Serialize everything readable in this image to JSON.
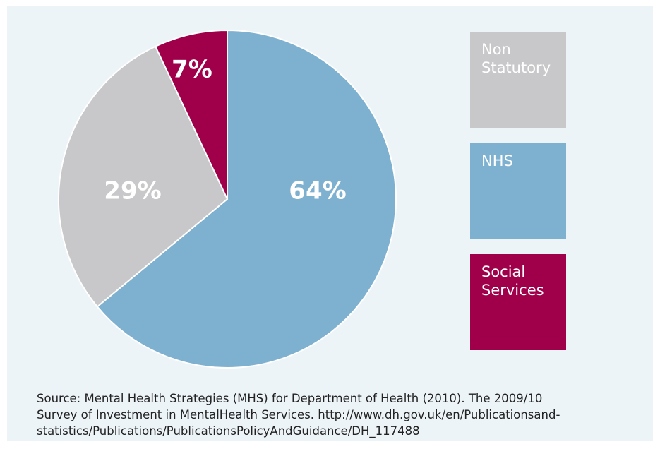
{
  "chart_data": {
    "type": "pie",
    "categories": [
      "NHS",
      "Non Statutory",
      "Social Services"
    ],
    "values": [
      64,
      29,
      7
    ],
    "value_labels": [
      "64%",
      "29%",
      "7%"
    ],
    "colors": [
      "#7eb1d0",
      "#c8c8ca",
      "#a0004a"
    ],
    "source_lines": [
      "Source: Mental Health Strategies (MHS) for Department of Health (2010). The 2009/10",
      "Survey of Investment in MentalHealth Services. http://www.dh.gov.uk/en/Publicationsand-",
      "statistics/Publications/PublicationsPolicyAndGuidance/DH_117488"
    ]
  }
}
